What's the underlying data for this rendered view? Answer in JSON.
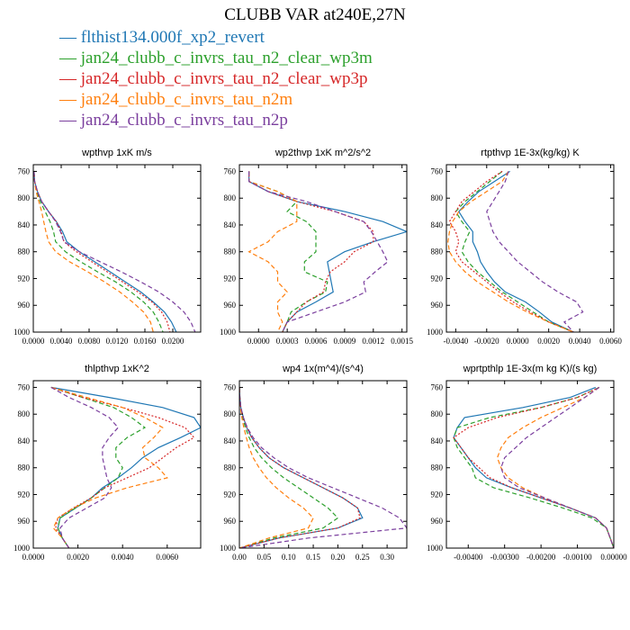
{
  "figure": {
    "title": "CLUBB VAR at240E,27N"
  },
  "colors": [
    "#1f77b4",
    "#2ca02c",
    "#d62728",
    "#ff7f0e",
    "#7b3f9e"
  ],
  "legend": [
    {
      "label": "flthist134.000f_xp2_revert",
      "color": "#1f77b4"
    },
    {
      "label": "jan24_clubb_c_invrs_tau_n2_clear_wp3m",
      "color": "#2ca02c"
    },
    {
      "label": "jan24_clubb_c_invrs_tau_n2_clear_wp3p",
      "color": "#d62728"
    },
    {
      "label": "jan24_clubb_c_invrs_tau_n2m",
      "color": "#ff7f0e"
    },
    {
      "label": "jan24_clubb_c_invrs_tau_n2p",
      "color": "#7b3f9e"
    }
  ],
  "chart_data": [
    {
      "type": "line",
      "title": "wpthvp  1xK m/s",
      "xlim": [
        0,
        0.024
      ],
      "ylim": [
        1000,
        750
      ],
      "xticks": [
        "0.0000",
        "0.0040",
        "0.0080",
        "0.0120",
        "0.0160",
        "0.0200"
      ],
      "xtick_values": [
        0,
        0.004,
        0.008,
        0.012,
        0.016,
        0.02
      ],
      "yticks": [
        "760",
        "800",
        "840",
        "880",
        "920",
        "960",
        "1000"
      ],
      "ytick_values": [
        760,
        800,
        840,
        880,
        920,
        960,
        1000
      ],
      "levels": [
        760,
        775,
        790,
        805,
        820,
        835,
        850,
        865,
        880,
        895,
        910,
        925,
        940,
        955,
        970,
        985,
        1000
      ],
      "series": [
        {
          "values": [
            0.0001,
            0.0002,
            0.0006,
            0.0012,
            0.0022,
            0.0033,
            0.0042,
            0.0048,
            0.0066,
            0.0088,
            0.011,
            0.0132,
            0.0154,
            0.0172,
            0.0188,
            0.0198,
            0.0205
          ],
          "style": "solid"
        },
        {
          "values": [
            0.0001,
            0.0002,
            0.0005,
            0.001,
            0.0017,
            0.0024,
            0.0029,
            0.0032,
            0.0046,
            0.0068,
            0.0092,
            0.0118,
            0.014,
            0.0158,
            0.0172,
            0.018,
            0.0186
          ],
          "style": "dashed"
        },
        {
          "values": [
            0.0001,
            0.0002,
            0.0006,
            0.0012,
            0.0022,
            0.0033,
            0.004,
            0.0044,
            0.0062,
            0.0084,
            0.0106,
            0.0128,
            0.015,
            0.017,
            0.0184,
            0.0192,
            0.0196
          ],
          "style": "dotted"
        },
        {
          "values": [
            0.0001,
            0.0002,
            0.0004,
            0.0008,
            0.0012,
            0.0015,
            0.0018,
            0.0022,
            0.0032,
            0.0052,
            0.0078,
            0.0102,
            0.0124,
            0.0142,
            0.0158,
            0.0168,
            0.0172
          ],
          "style": "dashed"
        },
        {
          "values": [
            0.0001,
            0.0002,
            0.0006,
            0.0012,
            0.0022,
            0.0032,
            0.0039,
            0.0044,
            0.0066,
            0.0096,
            0.0126,
            0.0154,
            0.018,
            0.02,
            0.0216,
            0.0226,
            0.0232
          ],
          "style": "dashed"
        }
      ]
    },
    {
      "type": "line",
      "title": "wp2thvp  1xK m^2/s^2",
      "xlim": [
        -0.0002,
        0.00155
      ],
      "ylim": [
        1000,
        750
      ],
      "xticks": [
        "0.0000",
        "0.0003",
        "0.0006",
        "0.0009",
        "0.0012",
        "0.0015"
      ],
      "xtick_values": [
        0,
        0.0003,
        0.0006,
        0.0009,
        0.0012,
        0.0015
      ],
      "yticks": [
        "760",
        "800",
        "840",
        "880",
        "920",
        "960",
        "1000"
      ],
      "ytick_values": [
        760,
        800,
        840,
        880,
        920,
        960,
        1000
      ],
      "levels": [
        760,
        775,
        790,
        805,
        820,
        835,
        850,
        865,
        880,
        895,
        910,
        925,
        940,
        955,
        970,
        985,
        1000
      ],
      "series": [
        {
          "values": [
            -0.0001,
            -0.0001,
            0.0001,
            0.0004,
            0.0009,
            0.0013,
            0.00155,
            0.0012,
            0.0009,
            0.00072,
            0.00074,
            0.00076,
            0.00078,
            0.0006,
            0.0004,
            0.0003,
            0.00025
          ],
          "style": "solid"
        },
        {
          "values": [
            -0.0001,
            -0.0001,
            0.0002,
            0.0004,
            0.0003,
            0.0005,
            0.0006,
            0.0006,
            0.0006,
            0.00048,
            0.00048,
            0.00072,
            0.0007,
            0.0005,
            0.00034,
            0.0003,
            0.00025
          ],
          "style": "dashed"
        },
        {
          "values": [
            -0.0001,
            -0.0001,
            0.0001,
            0.0004,
            0.0008,
            0.0011,
            0.0012,
            0.0012,
            0.001,
            0.0009,
            0.00075,
            0.0007,
            0.00068,
            0.0005,
            0.0004,
            0.0003,
            0.00025
          ],
          "style": "dotted"
        },
        {
          "values": [
            -0.0001,
            -0.0001,
            0.0002,
            0.0004,
            0.0004,
            0.0004,
            0.0002,
            0.0001,
            -0.0001,
            0.0001,
            0.0002,
            0.0002,
            0.0003,
            0.0002,
            0.0002,
            0.00025,
            0.0002
          ],
          "style": "dashed"
        },
        {
          "values": [
            -0.0001,
            -0.0001,
            0.0001,
            0.0005,
            0.0008,
            0.0011,
            0.00118,
            0.00124,
            0.0013,
            0.00135,
            0.00122,
            0.0011,
            0.00112,
            0.0009,
            0.0006,
            0.0003,
            0.00025
          ],
          "style": "dashed"
        }
      ]
    },
    {
      "type": "line",
      "title": "rtpthvp  1E-3x(kg/kg) K",
      "xlim": [
        -0.0046,
        0.0062
      ],
      "ylim": [
        1000,
        750
      ],
      "xticks": [
        "-0.0040",
        "-0.0020",
        "0.0000",
        "0.0020",
        "0.0040",
        "0.0060"
      ],
      "xtick_values": [
        -0.004,
        -0.002,
        0,
        0.002,
        0.004,
        0.006
      ],
      "yticks": [
        "760",
        "800",
        "840",
        "880",
        "920",
        "960",
        "1000"
      ],
      "ytick_values": [
        760,
        800,
        840,
        880,
        920,
        960,
        1000
      ],
      "levels": [
        760,
        775,
        790,
        805,
        820,
        835,
        850,
        865,
        880,
        895,
        910,
        925,
        940,
        955,
        970,
        985,
        1000
      ],
      "series": [
        {
          "values": [
            -0.0005,
            -0.0015,
            -0.0025,
            -0.0032,
            -0.0038,
            -0.0034,
            -0.0029,
            -0.0029,
            -0.0026,
            -0.0024,
            -0.002,
            -0.0015,
            -0.0008,
            0.0005,
            0.0014,
            0.0022,
            0.0036
          ],
          "style": "solid"
        },
        {
          "values": [
            -0.001,
            -0.0018,
            -0.0026,
            -0.0034,
            -0.004,
            -0.0036,
            -0.0031,
            -0.0034,
            -0.0036,
            -0.0032,
            -0.0026,
            -0.0018,
            -0.001,
            0.0,
            0.001,
            0.002,
            0.0036
          ],
          "style": "dashed"
        },
        {
          "values": [
            -0.001,
            -0.002,
            -0.0028,
            -0.0036,
            -0.004,
            -0.0044,
            -0.004,
            -0.0038,
            -0.004,
            -0.0036,
            -0.0028,
            -0.002,
            -0.0012,
            -0.0003,
            0.0008,
            0.002,
            0.0036
          ],
          "style": "dotted"
        },
        {
          "values": [
            -0.0006,
            -0.001,
            -0.002,
            -0.003,
            -0.0038,
            -0.0042,
            -0.0044,
            -0.0045,
            -0.0044,
            -0.004,
            -0.0034,
            -0.0026,
            -0.0016,
            -0.0006,
            0.0006,
            0.002,
            0.0036
          ],
          "style": "dashed"
        },
        {
          "values": [
            -0.0006,
            -0.0008,
            -0.0012,
            -0.0016,
            -0.002,
            -0.0018,
            -0.0016,
            -0.0012,
            -0.0006,
            0.0,
            0.0008,
            0.0016,
            0.0026,
            0.0038,
            0.0042,
            0.003,
            0.0036
          ],
          "style": "dashed"
        }
      ]
    },
    {
      "type": "line",
      "title": "thlpthvp  1xK^2",
      "xlim": [
        0,
        0.0075
      ],
      "ylim": [
        1000,
        750
      ],
      "xticks": [
        "0.0000",
        "0.0020",
        "0.0040",
        "0.0060"
      ],
      "xtick_values": [
        0,
        0.002,
        0.004,
        0.006
      ],
      "yticks": [
        "760",
        "800",
        "840",
        "880",
        "920",
        "960",
        "1000"
      ],
      "ytick_values": [
        760,
        800,
        840,
        880,
        920,
        960,
        1000
      ],
      "levels": [
        760,
        775,
        790,
        805,
        820,
        835,
        850,
        865,
        880,
        895,
        910,
        925,
        940,
        955,
        970,
        985,
        1000
      ],
      "series": [
        {
          "values": [
            0.0008,
            0.0034,
            0.0058,
            0.0072,
            0.0075,
            0.0066,
            0.0056,
            0.0049,
            0.0044,
            0.0038,
            0.0031,
            0.0026,
            0.0019,
            0.0012,
            0.0011,
            0.0013,
            0.0016
          ],
          "style": "solid"
        },
        {
          "values": [
            0.0008,
            0.0022,
            0.0036,
            0.0044,
            0.005,
            0.0042,
            0.0037,
            0.0037,
            0.004,
            0.0038,
            0.0032,
            0.0026,
            0.0019,
            0.0012,
            0.0011,
            0.0013,
            0.0016
          ],
          "style": "dashed"
        },
        {
          "values": [
            0.0008,
            0.0022,
            0.004,
            0.0056,
            0.0068,
            0.0072,
            0.0064,
            0.0058,
            0.0052,
            0.0042,
            0.0032,
            0.0026,
            0.0018,
            0.0011,
            0.001,
            0.0013,
            0.0016
          ],
          "style": "dotted"
        },
        {
          "values": [
            0.0008,
            0.0024,
            0.004,
            0.005,
            0.0058,
            0.0054,
            0.0049,
            0.005,
            0.0056,
            0.006,
            0.0042,
            0.0028,
            0.0018,
            0.0011,
            0.0009,
            0.0013,
            0.0016
          ],
          "style": "dashed"
        },
        {
          "values": [
            0.0008,
            0.0016,
            0.0026,
            0.0034,
            0.0038,
            0.0034,
            0.0031,
            0.0031,
            0.0032,
            0.0033,
            0.0035,
            0.0032,
            0.0024,
            0.0016,
            0.0012,
            0.0013,
            0.0016
          ],
          "style": "dashed"
        }
      ]
    },
    {
      "type": "line",
      "title": "wp4  1x(m^4)/(s^4)",
      "xlim": [
        0,
        0.34
      ],
      "ylim": [
        1000,
        750
      ],
      "xticks": [
        "0.00",
        "0.05",
        "0.10",
        "0.15",
        "0.20",
        "0.25",
        "0.30"
      ],
      "xtick_values": [
        0,
        0.05,
        0.1,
        0.15,
        0.2,
        0.25,
        0.3
      ],
      "yticks": [
        "760",
        "800",
        "840",
        "880",
        "920",
        "960",
        "1000"
      ],
      "ytick_values": [
        760,
        800,
        840,
        880,
        920,
        960,
        1000
      ],
      "levels": [
        760,
        775,
        790,
        805,
        820,
        835,
        850,
        865,
        880,
        895,
        910,
        925,
        940,
        955,
        970,
        985,
        1000
      ],
      "series": [
        {
          "values": [
            0.0,
            0.001,
            0.003,
            0.008,
            0.015,
            0.025,
            0.04,
            0.06,
            0.09,
            0.13,
            0.17,
            0.21,
            0.24,
            0.25,
            0.2,
            0.08,
            0.0
          ],
          "style": "solid"
        },
        {
          "values": [
            0.0,
            0.001,
            0.003,
            0.007,
            0.012,
            0.02,
            0.03,
            0.045,
            0.065,
            0.09,
            0.12,
            0.15,
            0.18,
            0.2,
            0.17,
            0.07,
            0.0
          ],
          "style": "dashed"
        },
        {
          "values": [
            0.0,
            0.001,
            0.003,
            0.008,
            0.015,
            0.025,
            0.04,
            0.06,
            0.09,
            0.13,
            0.17,
            0.21,
            0.24,
            0.245,
            0.2,
            0.08,
            0.0
          ],
          "style": "dotted"
        },
        {
          "values": [
            0.0,
            0.001,
            0.002,
            0.005,
            0.009,
            0.014,
            0.02,
            0.028,
            0.04,
            0.055,
            0.075,
            0.1,
            0.13,
            0.15,
            0.14,
            0.06,
            0.0
          ],
          "style": "dashed"
        },
        {
          "values": [
            0.0,
            0.001,
            0.003,
            0.008,
            0.016,
            0.028,
            0.045,
            0.07,
            0.1,
            0.14,
            0.19,
            0.24,
            0.29,
            0.325,
            0.34,
            0.14,
            0.0
          ],
          "style": "dashed"
        }
      ]
    },
    {
      "type": "line",
      "title": "wprtpthlp  1E-3x(m kg K)/(s kg)",
      "xlim": [
        -0.0046,
        0.0
      ],
      "ylim": [
        1000,
        750
      ],
      "xticks": [
        "-0.00400",
        "-0.00300",
        "-0.00200",
        "-0.00100",
        "0.00000"
      ],
      "xtick_values": [
        -0.004,
        -0.003,
        -0.002,
        -0.001,
        0.0
      ],
      "yticks": [
        "760",
        "800",
        "840",
        "880",
        "920",
        "960",
        "1000"
      ],
      "ytick_values": [
        760,
        800,
        840,
        880,
        920,
        960,
        1000
      ],
      "levels": [
        760,
        775,
        790,
        805,
        820,
        835,
        850,
        865,
        880,
        895,
        910,
        925,
        940,
        955,
        970,
        985,
        1000
      ],
      "series": [
        {
          "values": [
            -0.0005,
            -0.0012,
            -0.0025,
            -0.0041,
            -0.0043,
            -0.0044,
            -0.0042,
            -0.004,
            -0.0038,
            -0.0035,
            -0.0028,
            -0.002,
            -0.0012,
            -0.0005,
            -0.0002,
            -0.0001,
            0.0
          ],
          "style": "solid"
        },
        {
          "values": [
            -0.0004,
            -0.001,
            -0.002,
            -0.0034,
            -0.0043,
            -0.0044,
            -0.0043,
            -0.0041,
            -0.0039,
            -0.0038,
            -0.0033,
            -0.0023,
            -0.0014,
            -0.0006,
            -0.0002,
            -0.0001,
            0.0
          ],
          "style": "dashed"
        },
        {
          "values": [
            -0.0004,
            -0.001,
            -0.002,
            -0.0032,
            -0.004,
            -0.0044,
            -0.0042,
            -0.004,
            -0.0037,
            -0.0034,
            -0.0028,
            -0.002,
            -0.0012,
            -0.0005,
            -0.0002,
            -0.0001,
            0.0
          ],
          "style": "dotted"
        },
        {
          "values": [
            -0.0004,
            -0.0008,
            -0.0014,
            -0.002,
            -0.0025,
            -0.0029,
            -0.0031,
            -0.0032,
            -0.0031,
            -0.0029,
            -0.0025,
            -0.0019,
            -0.0012,
            -0.0005,
            -0.0002,
            -0.0001,
            0.0
          ],
          "style": "dashed"
        },
        {
          "values": [
            -0.0004,
            -0.0008,
            -0.0012,
            -0.0016,
            -0.002,
            -0.0024,
            -0.0027,
            -0.003,
            -0.0031,
            -0.003,
            -0.0026,
            -0.0019,
            -0.0012,
            -0.0005,
            -0.0002,
            -0.0001,
            0.0
          ],
          "style": "dashed"
        }
      ]
    }
  ]
}
